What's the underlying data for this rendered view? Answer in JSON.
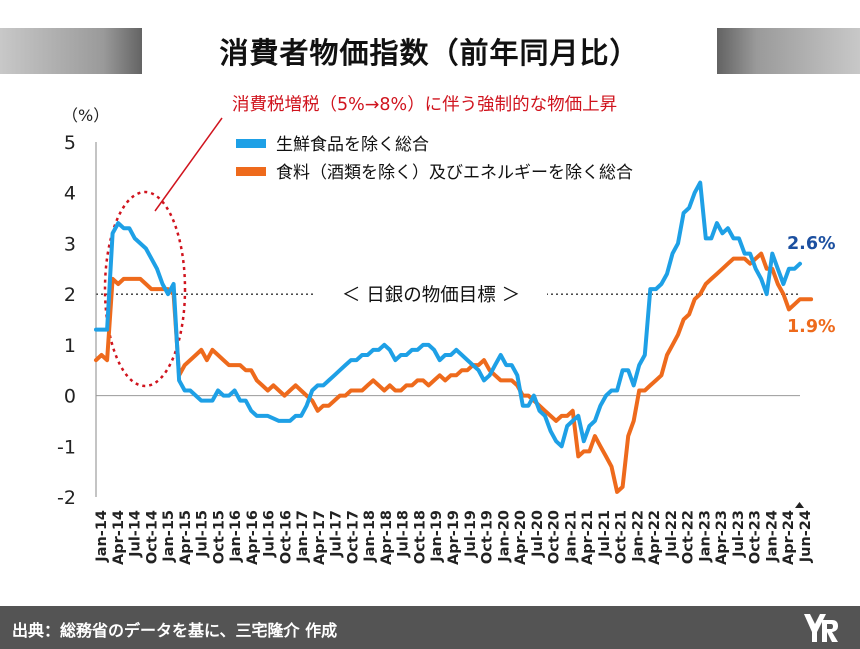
{
  "title": "消費者物価指数（前年同月比）",
  "footer": {
    "source": "出典：総務省のデータを基に、三宅隆介 作成"
  },
  "colors": {
    "blue": "#1ea0e6",
    "orange": "#ee6a1c",
    "red_note": "#d0141e",
    "blue_label": "#1c50a0",
    "orange_label": "#ee6a1c",
    "grid": "#333333"
  },
  "chart_data": {
    "type": "line",
    "ylabel": "（%）",
    "ylim": [
      -2,
      5
    ],
    "yticks": [
      5,
      4,
      3,
      2,
      1,
      0,
      -1,
      -2
    ],
    "x_tick_labels": [
      "Jan-14",
      "Apr-14",
      "Jul-14",
      "Oct-14",
      "Jan-15",
      "Apr-15",
      "Jul-15",
      "Oct-15",
      "Jan-16",
      "Apr-16",
      "Jul-16",
      "Oct-16",
      "Jan-17",
      "Apr-17",
      "Jul-17",
      "Oct-17",
      "Jan-18",
      "Apr-18",
      "Jul-18",
      "Oct-18",
      "Jan-19",
      "Apr-19",
      "Jul-19",
      "Oct-19",
      "Jan-20",
      "Apr-20",
      "Jul-20",
      "Oct-20",
      "Jan-21",
      "Apr-21",
      "Jul-21",
      "Oct-21",
      "Jan-22",
      "Apr-22",
      "Jul-22",
      "Oct-22",
      "Jan-23",
      "Apr-23",
      "Jul-23",
      "Oct-23",
      "Jan-24",
      "Apr-24",
      "Jun-24"
    ],
    "legend": [
      {
        "name": "生鮮食品を除く総合",
        "color": "#1ea0e6"
      },
      {
        "name": "食料（酒類を除く）及びエネルギーを除く総合",
        "color": "#ee6a1c"
      }
    ],
    "annotation": "消費税増税（5%→8%）に伴う強制的な物価上昇",
    "target_label": "＜ 日銀の物価目標 ＞",
    "target_value": 2,
    "end_labels": {
      "blue": "2.6%",
      "orange": "1.9%"
    },
    "series": [
      {
        "name": "生鮮食品を除く総合",
        "color": "#1ea0e6",
        "values": [
          1.3,
          1.3,
          1.3,
          3.2,
          3.4,
          3.3,
          3.3,
          3.1,
          3.0,
          2.9,
          2.7,
          2.5,
          2.2,
          2.0,
          2.2,
          0.3,
          0.1,
          0.1,
          0.0,
          -0.1,
          -0.1,
          -0.1,
          0.1,
          0.0,
          0.0,
          0.1,
          -0.1,
          -0.1,
          -0.3,
          -0.4,
          -0.4,
          -0.4,
          -0.45,
          -0.5,
          -0.5,
          -0.5,
          -0.4,
          -0.4,
          -0.2,
          0.1,
          0.2,
          0.2,
          0.3,
          0.4,
          0.5,
          0.6,
          0.7,
          0.7,
          0.8,
          0.8,
          0.9,
          0.9,
          1.0,
          0.9,
          0.7,
          0.8,
          0.8,
          0.9,
          0.9,
          1.0,
          1.0,
          0.9,
          0.7,
          0.8,
          0.8,
          0.9,
          0.8,
          0.7,
          0.6,
          0.5,
          0.3,
          0.4,
          0.6,
          0.8,
          0.6,
          0.6,
          0.4,
          -0.2,
          -0.2,
          0.0,
          -0.3,
          -0.4,
          -0.7,
          -0.9,
          -1.0,
          -0.6,
          -0.5,
          -0.4,
          -0.9,
          -0.6,
          -0.5,
          -0.2,
          0.0,
          0.1,
          0.1,
          0.5,
          0.5,
          0.2,
          0.6,
          0.8,
          2.1,
          2.1,
          2.2,
          2.4,
          2.8,
          3.0,
          3.6,
          3.7,
          4.0,
          4.2,
          3.1,
          3.1,
          3.4,
          3.2,
          3.3,
          3.1,
          3.1,
          2.8,
          2.8,
          2.5,
          2.3,
          2.0,
          2.8,
          2.5,
          2.2,
          2.5,
          2.5,
          2.6
        ]
      },
      {
        "name": "食料（酒類を除く）及びエネルギーを除く総合",
        "color": "#ee6a1c",
        "values": [
          0.7,
          0.8,
          0.7,
          2.3,
          2.2,
          2.3,
          2.3,
          2.3,
          2.3,
          2.2,
          2.1,
          2.1,
          2.1,
          2.1,
          2.0,
          0.4,
          0.6,
          0.7,
          0.8,
          0.9,
          0.7,
          0.9,
          0.8,
          0.7,
          0.6,
          0.6,
          0.6,
          0.5,
          0.5,
          0.3,
          0.2,
          0.1,
          0.2,
          0.1,
          0.0,
          0.1,
          0.2,
          0.1,
          0.0,
          -0.1,
          -0.3,
          -0.2,
          -0.2,
          -0.1,
          0.0,
          0.0,
          0.1,
          0.1,
          0.1,
          0.2,
          0.3,
          0.2,
          0.1,
          0.2,
          0.1,
          0.1,
          0.2,
          0.2,
          0.3,
          0.3,
          0.2,
          0.3,
          0.4,
          0.3,
          0.4,
          0.4,
          0.5,
          0.5,
          0.6,
          0.6,
          0.7,
          0.5,
          0.4,
          0.3,
          0.3,
          0.3,
          0.2,
          0.0,
          0.0,
          -0.1,
          -0.2,
          -0.3,
          -0.4,
          -0.5,
          -0.4,
          -0.4,
          -0.3,
          -1.2,
          -1.1,
          -1.1,
          -0.8,
          -1.0,
          -1.2,
          -1.4,
          -1.9,
          -1.8,
          -0.8,
          -0.5,
          0.1,
          0.1,
          0.2,
          0.3,
          0.4,
          0.8,
          1.0,
          1.2,
          1.5,
          1.6,
          1.9,
          2.0,
          2.2,
          2.3,
          2.4,
          2.5,
          2.6,
          2.7,
          2.7,
          2.7,
          2.6,
          2.7,
          2.8,
          2.5,
          2.5,
          2.2,
          2.0,
          1.7,
          1.8,
          1.9,
          1.9,
          1.9
        ]
      }
    ]
  }
}
